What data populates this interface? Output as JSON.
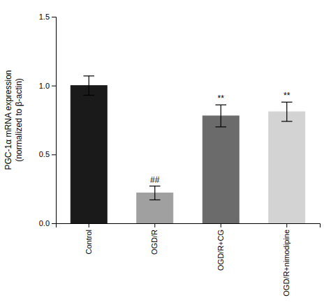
{
  "chart_data": {
    "type": "bar",
    "categories": [
      "Control",
      "OGD/R",
      "OGD/R+CG",
      "OGD/R+nimodipine"
    ],
    "values": [
      1.0,
      0.22,
      0.78,
      0.81
    ],
    "errors": [
      0.07,
      0.05,
      0.08,
      0.07
    ],
    "colors": [
      "#1a1a1a",
      "#a0a0a0",
      "#6b6b6b",
      "#d3d3d3"
    ],
    "significance": [
      null,
      "##",
      "**",
      "**"
    ],
    "y_label": "PGC-1α mRNA expression\n(normalized to β-actin)",
    "ylim": [
      0.0,
      1.5
    ],
    "yticks": [
      {
        "value": 0.0,
        "label": "0.0"
      },
      0.5,
      {
        "value": 1.0,
        "label": "1.0"
      },
      1.5
    ],
    "grid": false
  }
}
